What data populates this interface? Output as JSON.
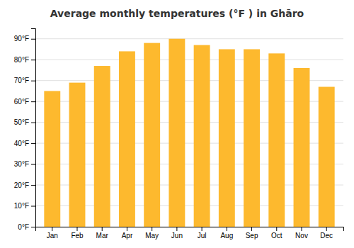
{
  "chart_data": {
    "type": "bar",
    "title": "Average monthly temperatures (°F ) in Ghāro",
    "categories": [
      "Jan",
      "Feb",
      "Mar",
      "Apr",
      "May",
      "Jun",
      "Jul",
      "Aug",
      "Sep",
      "Oct",
      "Nov",
      "Dec"
    ],
    "values": [
      65,
      69,
      77,
      84,
      88,
      90,
      87,
      85,
      85,
      83,
      76,
      67
    ],
    "color": "#FDB92E",
    "ylim": [
      0,
      95
    ],
    "yticks": [
      {
        "value": 0,
        "label": "0°F"
      },
      {
        "value": 10,
        "label": "10°F"
      },
      {
        "value": 20,
        "label": "20°F"
      },
      {
        "value": 30,
        "label": "30°F"
      },
      {
        "value": 40,
        "label": "40°F"
      },
      {
        "value": 50,
        "label": "50°F"
      },
      {
        "value": 60,
        "label": "60°F"
      },
      {
        "value": 70,
        "label": "70°F"
      },
      {
        "value": 80,
        "label": "80°F"
      },
      {
        "value": 90,
        "label": "90°F"
      }
    ],
    "grid": true
  }
}
